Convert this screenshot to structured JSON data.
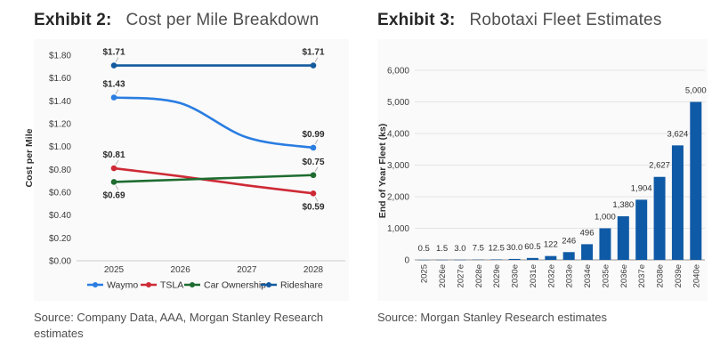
{
  "chart_data": [
    {
      "type": "line",
      "exhibit_label": "Exhibit 2:",
      "title": "Cost per Mile Breakdown",
      "source": "Source: Company Data, AAA, Morgan Stanley Research estimates",
      "ylabel": "Cost per Mile",
      "x_tick_labels": [
        "2025",
        "2026",
        "2027",
        "2028"
      ],
      "ylim": [
        0,
        1.8
      ],
      "y_tick_values": [
        0,
        0.2,
        0.4,
        0.6,
        0.8,
        1.0,
        1.2,
        1.4,
        1.6,
        1.8
      ],
      "y_tick_labels": [
        "$0.00",
        "$0.20",
        "$0.40",
        "$0.60",
        "$0.80",
        "$1.00",
        "$1.20",
        "$1.40",
        "$1.60",
        "$1.80"
      ],
      "grid": false,
      "legend_position": "bottom",
      "series": [
        {
          "name": "Waymo",
          "color": "#2A7DE1",
          "values": [
            1.43,
            1.38,
            1.08,
            0.99
          ],
          "point_labels": [
            {
              "x_index": 0,
              "text": "$1.43",
              "position": "above"
            },
            {
              "x_index": 3,
              "text": "$0.99",
              "position": "above"
            }
          ]
        },
        {
          "name": "TSLA",
          "color": "#CE2A36",
          "values": [
            0.81,
            0.74,
            0.66,
            0.59
          ],
          "point_labels": [
            {
              "x_index": 0,
              "text": "$0.81",
              "position": "above"
            },
            {
              "x_index": 3,
              "text": "$0.59",
              "position": "below"
            }
          ]
        },
        {
          "name": "Car Ownership",
          "color": "#1E6C30",
          "values": [
            0.69,
            0.71,
            0.73,
            0.75
          ],
          "point_labels": [
            {
              "x_index": 0,
              "text": "$0.69",
              "position": "below"
            },
            {
              "x_index": 3,
              "text": "$0.75",
              "position": "above"
            }
          ]
        },
        {
          "name": "Rideshare",
          "color": "#135A9E",
          "values": [
            1.71,
            1.71,
            1.71,
            1.71
          ],
          "point_labels": [
            {
              "x_index": 0,
              "text": "$1.71",
              "position": "above"
            },
            {
              "x_index": 3,
              "text": "$1.71",
              "position": "above"
            }
          ]
        }
      ]
    },
    {
      "type": "bar",
      "exhibit_label": "Exhibit 3:",
      "title": "Robotaxi Fleet Estimates",
      "source": "Source: Morgan Stanley Research estimates",
      "ylabel": "End of Year Fleet (ks)",
      "categories": [
        "2025",
        "2026e",
        "2027e",
        "2028e",
        "2029e",
        "2030e",
        "2031e",
        "2032e",
        "2033e",
        "2034e",
        "2035e",
        "2036e",
        "2037e",
        "2038e",
        "2039e",
        "2040e"
      ],
      "values": [
        0.5,
        1.5,
        3.0,
        7.5,
        12.5,
        30.0,
        60.5,
        122,
        246,
        496,
        1000,
        1380,
        1904,
        2627,
        3624,
        5000
      ],
      "value_labels": [
        "0.5",
        "1.5",
        "3.0",
        "7.5",
        "12.5",
        "30.0",
        "60.5",
        "122",
        "246",
        "496",
        "1,000",
        "1,380",
        "1,904",
        "2,627",
        "3,624",
        "5,000"
      ],
      "ylim": [
        0,
        6000
      ],
      "y_tick_values": [
        0,
        1000,
        2000,
        3000,
        4000,
        5000,
        6000
      ],
      "y_tick_labels": [
        "0",
        "1,000",
        "2,000",
        "3,000",
        "4,000",
        "5,000",
        "6,000"
      ],
      "bar_color": "#0F5AA6",
      "grid": true
    }
  ]
}
